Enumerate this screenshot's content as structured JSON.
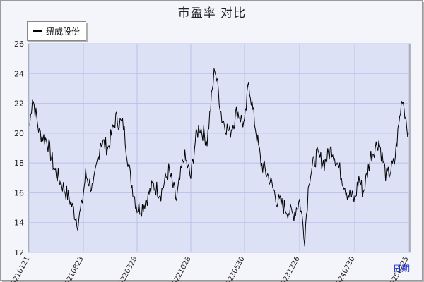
{
  "chart_data": {
    "type": "line",
    "title": "市盈率  对比",
    "legend_position": "top-left",
    "grid": true,
    "ylim": [
      12,
      26
    ],
    "y_ticks": [
      12,
      14,
      16,
      18,
      20,
      22,
      24,
      26
    ],
    "x_tick_labels": [
      "20210121",
      "20210823",
      "20220328",
      "20221028",
      "20230530",
      "20231226",
      "20240730",
      "20250225"
    ],
    "xlabel": "日期",
    "series": [
      {
        "name": "纽威股份",
        "color": "#000000",
        "x": [
          "20210121",
          "20210201",
          "20210301",
          "20210401",
          "20210501",
          "20210601",
          "20210701",
          "20210801",
          "20210815",
          "20210823",
          "20210901",
          "20211001",
          "20211101",
          "20211201",
          "20220101",
          "20220201",
          "20220301",
          "20220328",
          "20220415",
          "20220501",
          "20220601",
          "20220701",
          "20220801",
          "20220901",
          "20221001",
          "20221028",
          "20221115",
          "20221201",
          "20230101",
          "20230201",
          "20230301",
          "20230401",
          "20230501",
          "20230530",
          "20230615",
          "20230701",
          "20230801",
          "20230901",
          "20231001",
          "20231101",
          "20231201",
          "20231226",
          "20240115",
          "20240201",
          "20240301",
          "20240401",
          "20240501",
          "20240601",
          "20240701",
          "20240730",
          "20240815",
          "20240901",
          "20241001",
          "20241101",
          "20241201",
          "20250101",
          "20250201",
          "20250225"
        ],
        "values": [
          20.5,
          22.5,
          20.0,
          19.5,
          17.5,
          16.5,
          15.5,
          14.0,
          15.0,
          16.0,
          17.2,
          16.2,
          19.5,
          19.0,
          21.0,
          20.5,
          17.0,
          15.0,
          15.0,
          15.5,
          16.5,
          16.0,
          17.5,
          15.5,
          18.5,
          17.0,
          19.5,
          20.5,
          19.5,
          24.5,
          21.0,
          20.0,
          21.5,
          20.5,
          23.5,
          21.5,
          18.0,
          17.0,
          15.5,
          15.0,
          14.5,
          15.5,
          13.0,
          17.0,
          18.5,
          18.0,
          19.0,
          17.5,
          16.0,
          15.5,
          17.0,
          16.0,
          18.5,
          19.5,
          17.0,
          18.0,
          22.5,
          20.0
        ]
      }
    ]
  }
}
